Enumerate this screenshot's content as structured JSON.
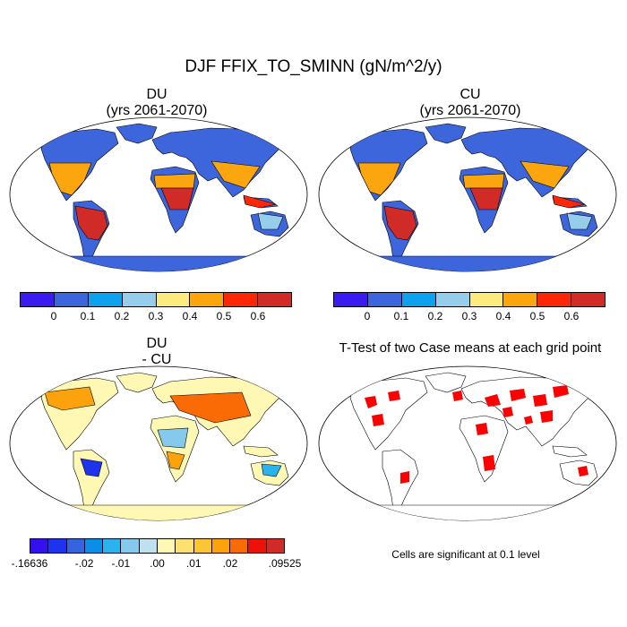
{
  "title": "DJF FFIX_TO_SMINN (gN/m^2/y)",
  "panels": {
    "du": {
      "title_line1": "DU",
      "title_line2": "(yrs 2061-2070)"
    },
    "cu": {
      "title_line1": "CU",
      "title_line2": "(yrs 2061-2070)"
    },
    "diff": {
      "title_line1": "DU",
      "title_line2": "- CU"
    },
    "ttest": {
      "title": "T-Test of two Case means at each grid point",
      "note": "Cells are significant at 0.1 level"
    }
  },
  "colorbar_main": {
    "colors": [
      "#3b1cf0",
      "#3d66dd",
      "#0ea2ee",
      "#96cdea",
      "#fbeb7f",
      "#fba60f",
      "#fd2707",
      "#d12b27"
    ],
    "tick_labels": [
      "0",
      "0.1",
      "0.2",
      "0.3",
      "0.4",
      "0.5",
      "0.6"
    ]
  },
  "colorbar_diff": {
    "colors": [
      "#3410ee",
      "#1e33ee",
      "#3565de",
      "#0b8ee8",
      "#2bb3ee",
      "#85c9ec",
      "#bfe0ef",
      "#fff7b4",
      "#fce170",
      "#fbc534",
      "#fba20c",
      "#fa6a05",
      "#ec1208",
      "#d12b27"
    ],
    "tick_labels": [
      "-.16636",
      "-.02",
      "-.01",
      ".00",
      ".01",
      ".02",
      ".09525"
    ]
  },
  "colors": {
    "ocean": "#ffffff",
    "significance": "#ff0000",
    "outline": "#000000"
  }
}
